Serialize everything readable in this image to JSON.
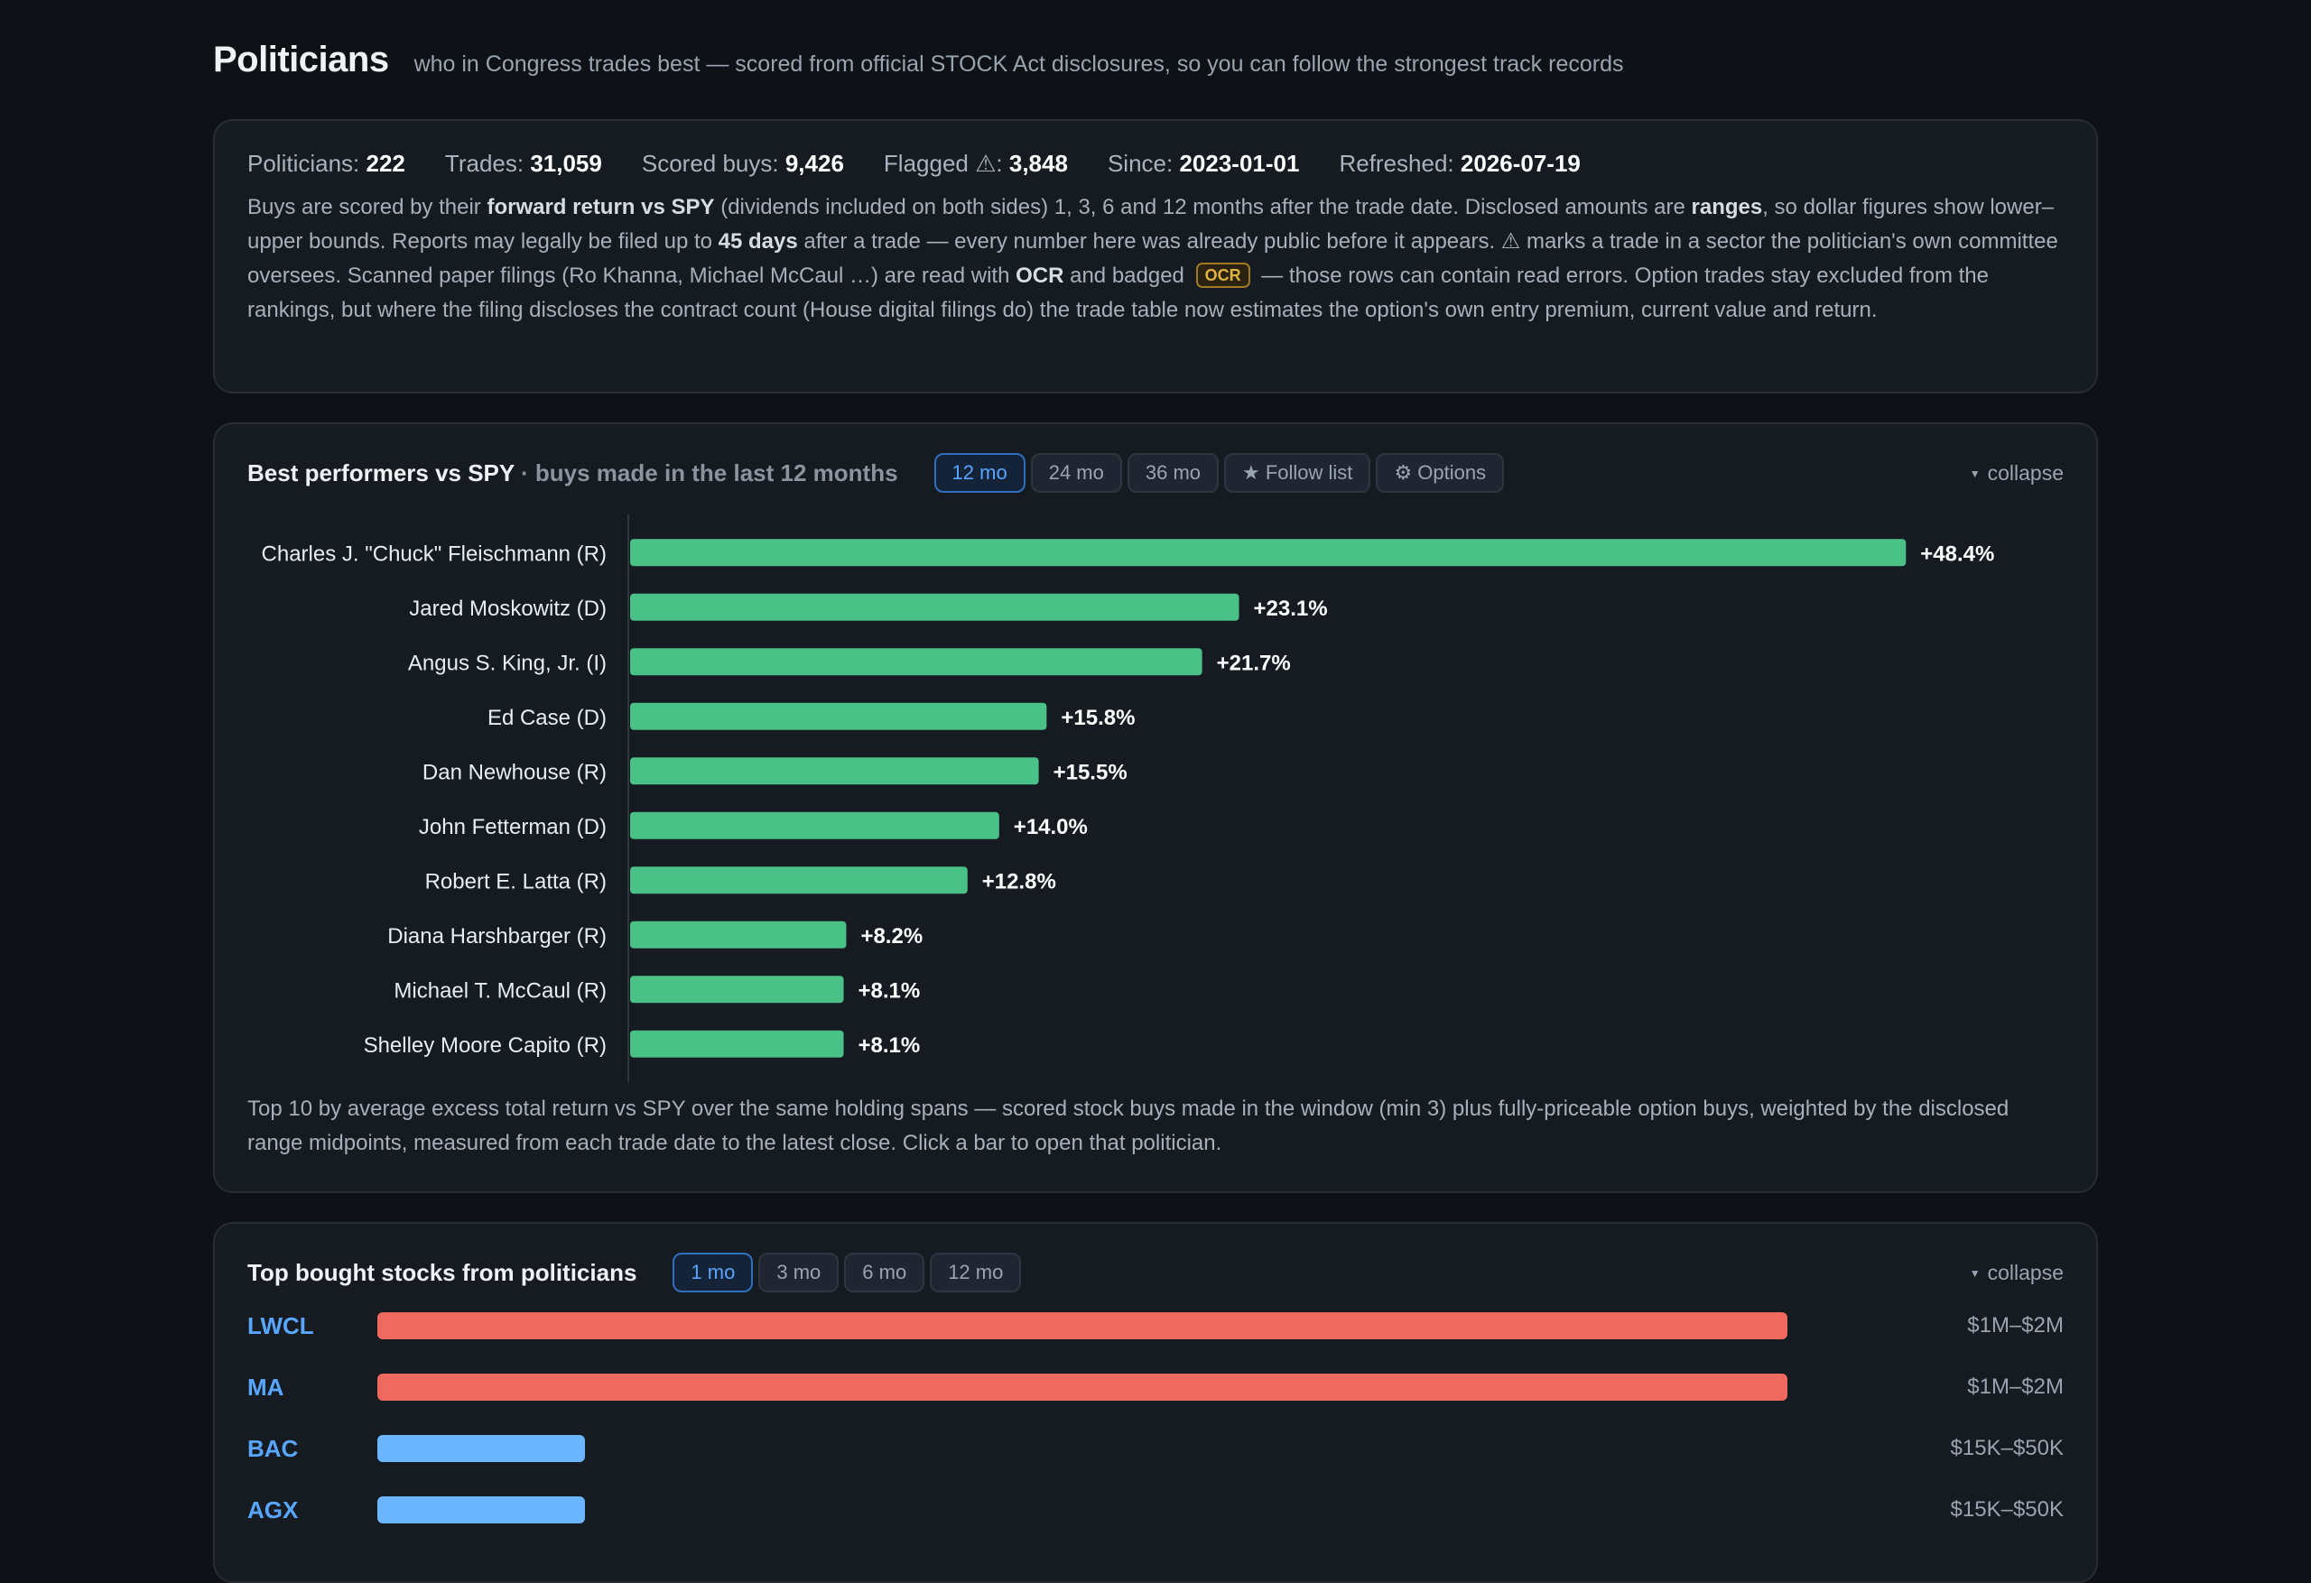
{
  "header": {
    "title": "Politicians",
    "subtitle": "who in Congress trades best — scored from official STOCK Act disclosures, so you can follow the strongest track records"
  },
  "stats": {
    "politicians_label": "Politicians:",
    "politicians": "222",
    "trades_label": "Trades:",
    "trades": "31,059",
    "scored_label": "Scored buys:",
    "scored": "9,426",
    "flagged_label": "Flagged ⚠:",
    "flagged": "3,848",
    "since_label": "Since:",
    "since": "2023-01-01",
    "refreshed_label": "Refreshed:",
    "refreshed": "2026-07-19"
  },
  "description": {
    "p1": "Buys are scored by their ",
    "b1": "forward return vs SPY",
    "p2": " (dividends included on both sides) 1, 3, 6 and 12 months after the trade date. Disclosed amounts are ",
    "b2": "ranges",
    "p3": ", so dollar figures show lower–upper bounds. Reports may legally be filed up to ",
    "b3": "45 days",
    "p4": " after a trade — every number here was already public before it appears. ⚠ marks a trade in a sector the politician's own committee oversees. Scanned paper filings (Ro Khanna, Michael McCaul …) are read with ",
    "b4": "OCR",
    "p5": " and badged ",
    "badge": "OCR",
    "p6": " — those rows can contain read errors. Option trades stay excluded from the rankings, but where the filing discloses the contract count (House digital filings do) the trade table now estimates the option's own entry premium, current value and return."
  },
  "performers": {
    "title": "Best performers vs SPY",
    "subtitle": " · buys made in the last 12 months",
    "tabs": [
      "12 mo",
      "24 mo",
      "36 mo"
    ],
    "active_tab": "12 mo",
    "follow_label": "★ Follow list",
    "options_label": "⚙ Options",
    "collapse_label": "collapse",
    "note": "Top 10 by average excess total return vs SPY over the same holding spans — scored stock buys made in the window (min 3) plus fully-priceable option buys, weighted by the disclosed range midpoints, measured from each trade date to the latest close. Click a bar to open that politician."
  },
  "chart_data": {
    "type": "bar",
    "orientation": "horizontal",
    "categories": [
      "Charles J. \"Chuck\" Fleischmann (R)",
      "Jared Moskowitz (D)",
      "Angus S. King, Jr. (I)",
      "Ed Case (D)",
      "Dan Newhouse (R)",
      "John Fetterman (D)",
      "Robert E. Latta (R)",
      "Diana Harshbarger (R)",
      "Michael T. McCaul (R)",
      "Shelley Moore Capito (R)"
    ],
    "values": [
      48.4,
      23.1,
      21.7,
      15.8,
      15.5,
      14.0,
      12.8,
      8.2,
      8.1,
      8.1
    ],
    "value_labels": [
      "+48.4%",
      "+23.1%",
      "+21.7%",
      "+15.8%",
      "+15.5%",
      "+14.0%",
      "+12.8%",
      "+8.2%",
      "+8.1%",
      "+8.1%"
    ],
    "bar_color": "#4ac287",
    "grid": false
  },
  "top_bought": {
    "title": "Top bought stocks from politicians",
    "tabs": [
      "1 mo",
      "3 mo",
      "6 mo",
      "12 mo"
    ],
    "active_tab": "1 mo",
    "collapse_label": "collapse",
    "rows": [
      {
        "ticker": "LWCL",
        "amount": "$1M–$2M",
        "share": 1.0,
        "color": "#f0695e"
      },
      {
        "ticker": "MA",
        "amount": "$1M–$2M",
        "share": 1.0,
        "color": "#f0695e"
      },
      {
        "ticker": "BAC",
        "amount": "$15K–$50K",
        "share": 0.147,
        "color": "#6cb6ff"
      },
      {
        "ticker": "AGX",
        "amount": "$15K–$50K",
        "share": 0.147,
        "color": "#6cb6ff"
      }
    ]
  }
}
